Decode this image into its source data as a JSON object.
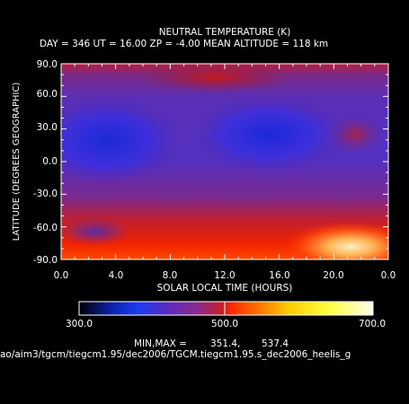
{
  "chart_data": {
    "type": "heatmap",
    "title": "NEUTRAL TEMPERATURE (K)",
    "subtitle": "DAY = 346   UT = 16.00   ZP =   -4.00   MEAN ALTITUDE = 118 km",
    "xlabel": "SOLAR LOCAL TIME (HOURS)",
    "ylabel": "LATITUDE (DEGREES GEOGRAPHIC)",
    "xlim": [
      0,
      24
    ],
    "ylim": [
      -90,
      90
    ],
    "x_ticks": [
      "0.0",
      "4.0",
      "8.0",
      "12.0",
      "16.0",
      "20.0",
      "0.0"
    ],
    "y_ticks": [
      "-90.0",
      "-60.0",
      "-30.0",
      "0.0",
      "30.0",
      "60.0",
      "90.0"
    ],
    "colorbar": {
      "range": [
        300,
        700
      ],
      "tick_labels": [
        "300.0",
        "500.0",
        "700.0"
      ],
      "colors": [
        "#000000",
        "#0b1ea0",
        "#1a3cf0",
        "#5a2bc0",
        "#8a2a90",
        "#c8201e",
        "#ff2a00",
        "#ff7a00",
        "#ffd000",
        "#ffff40",
        "#fffff0"
      ]
    },
    "min_max_label": "MIN,MAX =",
    "min": "351.4,",
    "max": "537.4",
    "features": [
      {
        "lat": 10,
        "slt": 3.5,
        "value": 360,
        "kind": "minimum"
      },
      {
        "lat": 18,
        "slt": 16,
        "value": 360,
        "kind": "minimum"
      },
      {
        "lat": 80,
        "slt": 12,
        "value": 445,
        "kind": "maximum"
      },
      {
        "lat": -62,
        "slt": 22,
        "value": 537,
        "kind": "maximum"
      }
    ]
  },
  "file_path": "ao/aim3/tgcm/tiegcm1.95/dec2006/TGCM.tiegcm1.95.s_dec2006_heelis_g"
}
